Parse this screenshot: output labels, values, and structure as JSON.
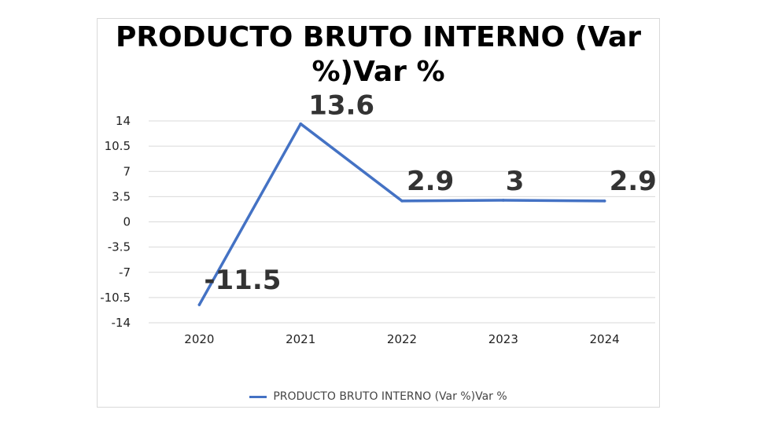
{
  "chart_data": {
    "type": "line",
    "title_lines": [
      "PRODUCTO BRUTO INTERNO (Var",
      "%)Var %"
    ],
    "categories": [
      "2020",
      "2021",
      "2022",
      "2023",
      "2024"
    ],
    "series": [
      {
        "name": "PRODUCTO BRUTO INTERNO (Var %)Var %",
        "values": [
          -11.5,
          13.6,
          2.9,
          3,
          2.9
        ]
      }
    ],
    "data_labels": [
      "-11.5",
      "13.6",
      "2.9",
      "3",
      "2.9"
    ],
    "y_ticks": [
      14,
      10.5,
      7,
      3.5,
      0,
      -3.5,
      -7,
      -10.5,
      -14
    ],
    "ylim": [
      -14,
      14
    ],
    "grid": true,
    "legend_position": "bottom",
    "line_color": "#4472c4",
    "grid_color": "#d9d9d9"
  }
}
